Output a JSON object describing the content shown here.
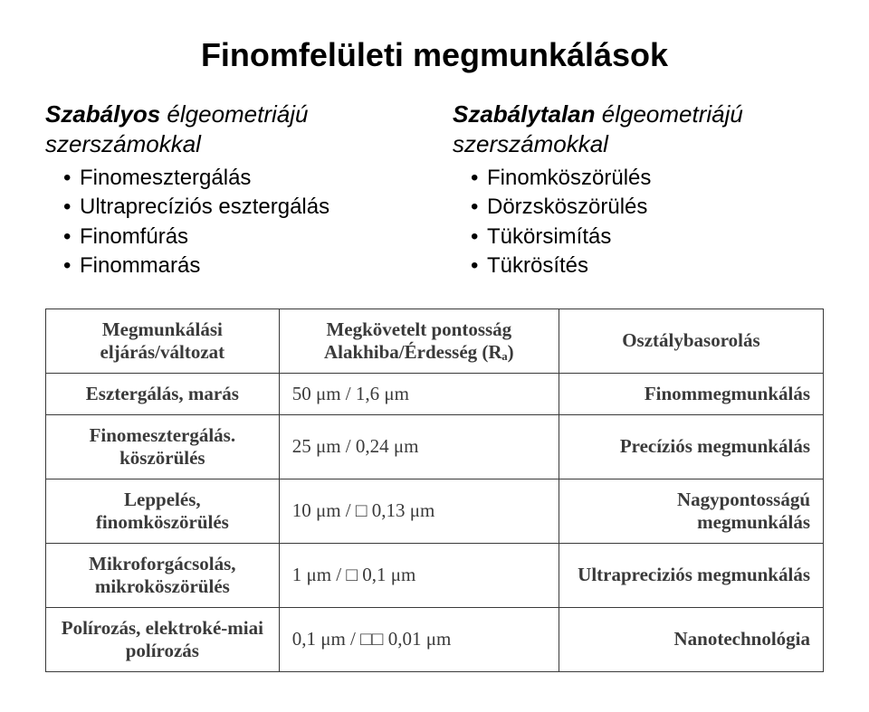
{
  "title": "Finomfelületi megmunkálások",
  "left": {
    "heading_bold": "Szabályos",
    "heading_rest": "élgeometriájú szerszámokkal",
    "items": [
      "Finomesztergálás",
      "Ultraprecíziós esztergálás",
      "Finomfúrás",
      "Finommarás"
    ]
  },
  "right": {
    "heading_bold": "Szabálytalan",
    "heading_rest": "élgeometriájú szerszámokkal",
    "items": [
      "Finomköszörülés",
      "Dörzsköszörülés",
      "Tükörsimítás",
      "Tükrösítés"
    ]
  },
  "table": {
    "headers": [
      "Megmunkálási eljárás/változat",
      "Megkövetelt pontosság Alakhiba/Érdesség (Rₐ)",
      "Osztálybasorolás"
    ],
    "rows": [
      [
        "Esztergálás, marás",
        "50  μm / 1,6 μm",
        "Finommegmunkálás"
      ],
      [
        "Finomesztergálás. köszörülés",
        "25  μm / 0,24 μm",
        "Precíziós megmunkálás"
      ],
      [
        "Leppelés, finomköszörülés",
        "10  μm /  □ 0,13 μm",
        "Nagypontosságú megmunkálás"
      ],
      [
        "Mikroforgácsolás, mikroköszörülés",
        "1  μm / □ 0,1 μm",
        "Ultrapreciziós megmunkálás"
      ],
      [
        "Polírozás, elektroké-miai polírozás",
        "0,1  μm / □□ 0,01 μm",
        "Nanotechnológia"
      ]
    ]
  },
  "colors": {
    "text": "#000000",
    "table_text": "#3a3a3a",
    "border": "#3a3a3a",
    "background": "#ffffff"
  },
  "fonts": {
    "body": "Arial",
    "table": "Times New Roman",
    "title_size": 36,
    "heading_size": 26,
    "item_size": 24,
    "table_size": 21
  }
}
